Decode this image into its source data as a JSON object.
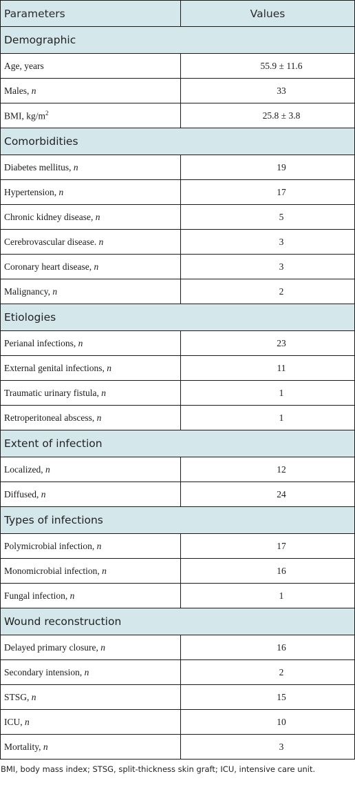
{
  "header": {
    "parameters": "Parameters",
    "values": "Values"
  },
  "sections": [
    {
      "title": "Demographic",
      "rows": [
        {
          "label": "Age, years",
          "n": "",
          "value": "55.9 ± 11.6"
        },
        {
          "label": "Males, ",
          "n": "n",
          "value": "33"
        },
        {
          "label": "BMI, kg/m",
          "sup": "2",
          "n": "",
          "value": "25.8 ± 3.8"
        }
      ]
    },
    {
      "title": "Comorbidities",
      "rows": [
        {
          "label": "Diabetes mellitus, ",
          "n": "n",
          "value": "19"
        },
        {
          "label": "Hypertension, ",
          "n": "n",
          "value": "17"
        },
        {
          "label": "Chronic kidney disease, ",
          "n": "n",
          "value": "5"
        },
        {
          "label": "Cerebrovascular disease. ",
          "n": "n",
          "value": "3"
        },
        {
          "label": "Coronary heart disease, ",
          "n": "n",
          "value": "3"
        },
        {
          "label": "Malignancy, ",
          "n": "n",
          "value": "2"
        }
      ]
    },
    {
      "title": "Etiologies",
      "rows": [
        {
          "label": "Perianal infections, ",
          "n": "n",
          "value": "23"
        },
        {
          "label": "External genital infections, ",
          "n": "n",
          "value": "11"
        },
        {
          "label": "Traumatic urinary fistula, ",
          "n": "n",
          "value": "1"
        },
        {
          "label": "Retroperitoneal abscess, ",
          "n": "n",
          "value": "1"
        }
      ]
    },
    {
      "title": "Extent of infection",
      "rows": [
        {
          "label": "Localized, ",
          "n": "n",
          "value": "12"
        },
        {
          "label": "Diffused, ",
          "n": "n",
          "value": "24"
        }
      ]
    },
    {
      "title": "Types of infections",
      "rows": [
        {
          "label": "Polymicrobial infection, ",
          "n": "n",
          "value": "17"
        },
        {
          "label": "Monomicrobial infection, ",
          "n": "n",
          "value": "16"
        },
        {
          "label": "Fungal infection, ",
          "n": "n",
          "value": "1"
        }
      ]
    },
    {
      "title": "Wound reconstruction",
      "rows": [
        {
          "label": "Delayed primary closure, ",
          "n": "n",
          "value": "16"
        },
        {
          "label": "Secondary intension, ",
          "n": "n",
          "value": "2"
        },
        {
          "label": "STSG, ",
          "n": "n",
          "value": "15"
        },
        {
          "label": "ICU, ",
          "n": "n",
          "value": "10"
        },
        {
          "label": "Mortality, ",
          "n": "n",
          "value": "3"
        }
      ]
    }
  ],
  "footnote": "BMI, body mass index; STSG, split-thickness skin graft; ICU, intensive care unit.",
  "colors": {
    "header_bg": "#d4e7ea",
    "border": "#1a1a1a"
  }
}
